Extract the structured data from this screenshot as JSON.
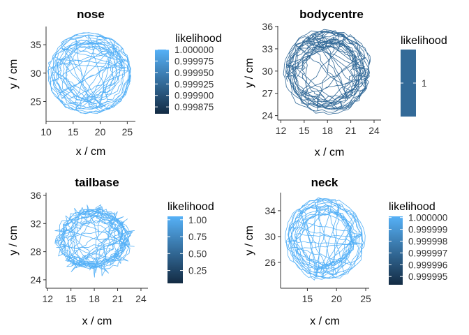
{
  "colors": {
    "trace_default": "#56b1f7",
    "bodycentre_trace": "#336a98",
    "low": "#132b43",
    "high": "#56b1f7",
    "axis": "#333333"
  },
  "chart_data": [
    {
      "type": "line",
      "title": "nose",
      "xlabel": "x / cm",
      "ylabel": "y / cm",
      "xlim": [
        10,
        26.5
      ],
      "ylim": [
        21.5,
        38.2
      ],
      "xticks": [
        10,
        15,
        20,
        25
      ],
      "yticks": [
        25,
        30,
        35
      ],
      "path": {
        "cx": 18.0,
        "cy": 30.0,
        "outer_rx": 7.8,
        "outer_ry": 7.2,
        "inner_rx": 4.0,
        "inner_ry": 4.0
      },
      "color": "#56b1f7",
      "legend": {
        "title": "likelihood",
        "range": [
          0.99986,
          1.0
        ],
        "ticks": [
          1.0,
          0.999975,
          0.99995,
          0.999925,
          0.9999,
          0.999875
        ],
        "labels": [
          "1.000000",
          "0.999975",
          "0.999950",
          "0.999925",
          "0.999900",
          "0.999875"
        ]
      }
    },
    {
      "type": "line",
      "title": "bodycentre",
      "xlabel": "x / cm",
      "ylabel": "y / cm",
      "xlim": [
        11.6,
        24.9
      ],
      "ylim": [
        23.4,
        36.1
      ],
      "xticks": [
        12,
        15,
        18,
        21,
        24
      ],
      "yticks": [
        24,
        27,
        30,
        33,
        36
      ],
      "path": {
        "cx": 18.0,
        "cy": 30.0,
        "outer_rx": 5.8,
        "outer_ry": 5.9,
        "inner_rx": 3.0,
        "inner_ry": 3.0
      },
      "color": "#336a98",
      "legend": {
        "title": "likelihood",
        "range": [
          0.99,
          1.01
        ],
        "ticks": [
          1
        ],
        "labels": [
          "1"
        ]
      }
    },
    {
      "type": "line",
      "title": "tailbase",
      "xlabel": "x / cm",
      "ylabel": "y / cm",
      "xlim": [
        11.8,
        24.9
      ],
      "ylim": [
        22.8,
        36.4
      ],
      "xticks": [
        12,
        15,
        18,
        21,
        24
      ],
      "yticks": [
        24,
        28,
        32,
        36
      ],
      "path": {
        "cx": 18.0,
        "cy": 29.6,
        "outer_rx": 5.8,
        "outer_ry": 5.6,
        "inner_rx": 2.5,
        "inner_ry": 2.5
      },
      "color": "#56b1f7",
      "legend": {
        "title": "likelihood",
        "range": [
          0.06,
          1.05
        ],
        "ticks": [
          1.0,
          0.75,
          0.5,
          0.25
        ],
        "labels": [
          "1.00",
          "0.75",
          "0.50",
          "0.25"
        ]
      }
    },
    {
      "type": "line",
      "title": "neck",
      "xlabel": "x / cm",
      "ylabel": "y / cm",
      "xlim": [
        10.4,
        25.6
      ],
      "ylim": [
        22.0,
        36.8
      ],
      "xticks": [
        15,
        20,
        25
      ],
      "yticks": [
        26,
        30,
        34
      ],
      "path": {
        "cx": 18.0,
        "cy": 29.6,
        "outer_rx": 7.0,
        "outer_ry": 6.4,
        "inner_rx": 4.0,
        "inner_ry": 3.6
      },
      "color": "#56b1f7",
      "legend": {
        "title": "likelihood",
        "range": [
          0.9999943,
          1.0000001
        ],
        "ticks": [
          1.0,
          0.999999,
          0.999998,
          0.999997,
          0.999996,
          0.999995
        ],
        "labels": [
          "1.000000",
          "0.999999",
          "0.999998",
          "0.999997",
          "0.999996",
          "0.999995"
        ]
      }
    }
  ]
}
